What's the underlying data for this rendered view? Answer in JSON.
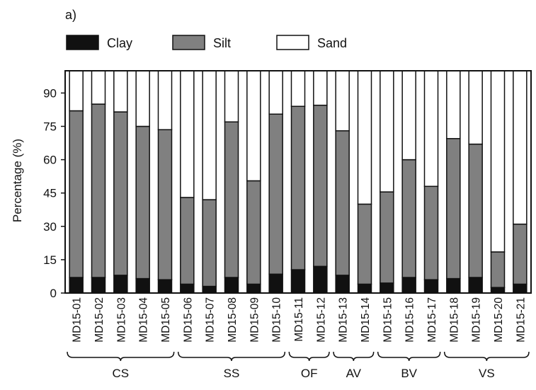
{
  "chart_data": {
    "type": "bar",
    "stacked": true,
    "panel_label": "a)",
    "ylabel": "Percentage (%)",
    "xlabel": "",
    "ylim": [
      0,
      100
    ],
    "yticks": [
      "0",
      "15",
      "30",
      "45",
      "60",
      "75",
      "90"
    ],
    "legend_position": "top-left",
    "categories": [
      "MD15-01",
      "MD15-02",
      "MD15-03",
      "MD15-04",
      "MD15-05",
      "MD15-06",
      "MD15-07",
      "MD15-08",
      "MD15-09",
      "MD15-10",
      "MD15-11",
      "MD15-12",
      "MD15-13",
      "MD15-14",
      "MD15-15",
      "MD15-16",
      "MD15-17",
      "MD15-18",
      "MD15-19",
      "MD15-20",
      "MD15-21"
    ],
    "series": [
      {
        "name": "Clay",
        "color": "#111111",
        "values": [
          7,
          7,
          8,
          6.5,
          6,
          4,
          3,
          7,
          4,
          8.5,
          10.5,
          12,
          8,
          4,
          4.5,
          7,
          6,
          6.5,
          7,
          2.5,
          4
        ]
      },
      {
        "name": "Silt",
        "color": "#808080",
        "values": [
          75,
          78,
          73.5,
          68.5,
          67.5,
          39,
          39,
          70,
          46.5,
          72,
          73.5,
          72.5,
          65,
          36,
          41,
          53,
          42,
          63,
          60,
          16,
          27
        ]
      },
      {
        "name": "Sand",
        "color": "#ffffff",
        "values": [
          18,
          15,
          18.5,
          25,
          26.5,
          57,
          58,
          23,
          49.5,
          19.5,
          16,
          15.5,
          27,
          60,
          54.5,
          40,
          52,
          30.5,
          33,
          81.5,
          69
        ]
      }
    ],
    "groups": [
      {
        "label": "CS",
        "from": 0,
        "to": 4
      },
      {
        "label": "SS",
        "from": 5,
        "to": 9
      },
      {
        "label": "OF",
        "from": 10,
        "to": 11
      },
      {
        "label": "AV",
        "from": 12,
        "to": 13
      },
      {
        "label": "BV",
        "from": 14,
        "to": 16
      },
      {
        "label": "VS",
        "from": 17,
        "to": 20
      }
    ]
  }
}
